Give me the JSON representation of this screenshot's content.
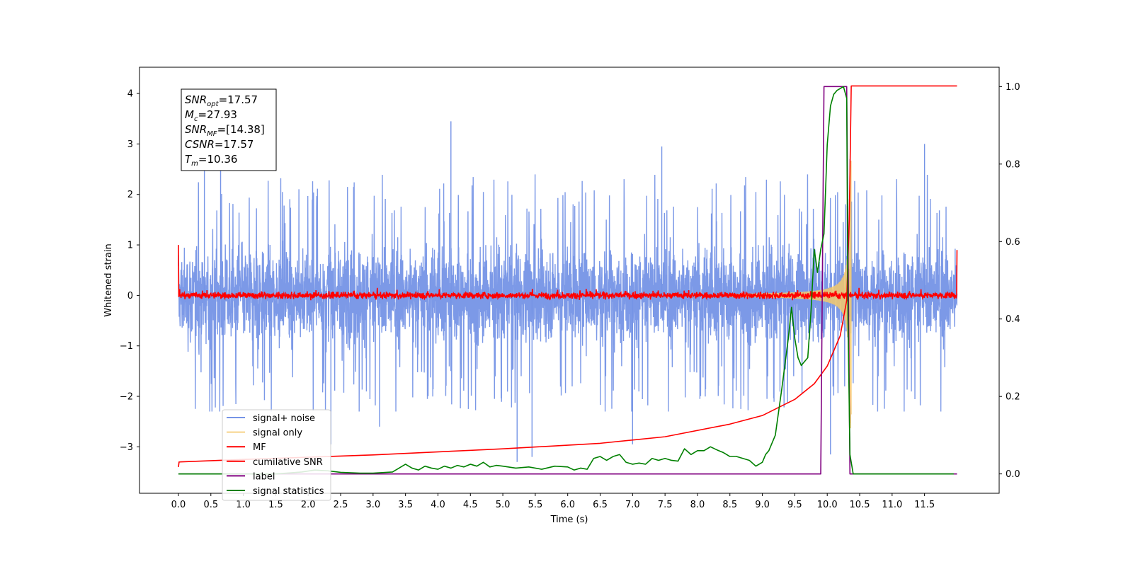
{
  "chart_data": {
    "type": "line",
    "title": "",
    "xlabel": "Time (s)",
    "ylabel": "Whitened strain",
    "xlim": [
      -0.6,
      12.65
    ],
    "ylim": [
      -3.92,
      4.52
    ],
    "y2lim": [
      -0.05,
      1.05
    ],
    "x_ticks": [
      "0.0",
      "0.5",
      "1.0",
      "1.5",
      "2.0",
      "2.5",
      "3.0",
      "3.5",
      "4.0",
      "4.5",
      "5.0",
      "5.5",
      "6.0",
      "6.5",
      "7.0",
      "7.5",
      "8.0",
      "8.5",
      "9.0",
      "9.5",
      "10.0",
      "10.5",
      "11.0",
      "11.5"
    ],
    "y_ticks": [
      "−3",
      "−2",
      "−1",
      "0",
      "1",
      "2",
      "3",
      "4"
    ],
    "y2_ticks": [
      "0.0",
      "0.2",
      "0.4",
      "0.6",
      "0.8",
      "1.0"
    ],
    "grid": false,
    "legend_position": "lower-left",
    "info_box": {
      "lines": [
        {
          "base": "SNR",
          "sub": "opt",
          "value": "=17.57"
        },
        {
          "base": "M",
          "sub": "c",
          "value": "=27.93"
        },
        {
          "base": "SNR",
          "sub": "MF",
          "value": "=[14.38]"
        },
        {
          "base": "CSNR",
          "sub": "",
          "value": "=17.57"
        },
        {
          "base": "T",
          "sub": "m",
          "value": "=10.36"
        }
      ]
    },
    "series": [
      {
        "name": "signal+ noise",
        "color": "#7594e6",
        "axis": "left",
        "x_range": [
          0,
          12
        ],
        "envelope": [
          -2.3,
          2.4
        ],
        "spikes": [
          [
            4.2,
            3.45
          ],
          [
            4.2,
            -1.5
          ],
          [
            0.4,
            2.6
          ],
          [
            0.65,
            2.6
          ],
          [
            10.35,
            2.7
          ],
          [
            11.5,
            3.0
          ],
          [
            7.45,
            2.95
          ],
          [
            5.22,
            -3.3
          ],
          [
            5.45,
            -3.2
          ],
          [
            3.1,
            -2.6
          ],
          [
            2.35,
            -2.95
          ],
          [
            7.0,
            -2.95
          ],
          [
            10.05,
            -3.15
          ]
        ]
      },
      {
        "name": "signal only",
        "color": "#f5c96b",
        "axis": "left",
        "x_range": [
          8.5,
          10.37
        ],
        "note": "chirp amplitude growing toward merger"
      },
      {
        "name": "MF",
        "color": "#ff0000",
        "axis": "left",
        "x_range": [
          0,
          12
        ],
        "baseline": 0.0,
        "edges": [
          [
            0.0,
            1.0
          ],
          [
            12.0,
            0.9
          ]
        ]
      },
      {
        "name": "cumilative SNR",
        "color": "#ff0000",
        "axis": "left",
        "x": [
          0.0,
          0.01,
          1.0,
          3.0,
          5.0,
          6.5,
          7.5,
          8.5,
          9.0,
          9.5,
          9.8,
          10.0,
          10.2,
          10.3,
          10.34,
          10.37,
          10.5,
          12.0
        ],
        "y": [
          -3.4,
          -3.3,
          -3.25,
          -3.16,
          -3.04,
          -2.93,
          -2.8,
          -2.55,
          -2.38,
          -2.06,
          -1.75,
          -1.4,
          -0.8,
          -0.1,
          1.5,
          4.15,
          4.15,
          4.15
        ]
      },
      {
        "name": "label",
        "color": "#800080",
        "axis": "right",
        "x": [
          0.0,
          9.9,
          9.95,
          10.3,
          10.35,
          12.0
        ],
        "y": [
          0.0,
          0.0,
          1.0,
          1.0,
          0.0,
          0.0
        ]
      },
      {
        "name": "signal statistics",
        "color": "#008000",
        "axis": "right",
        "x": [
          0.0,
          0.5,
          1.0,
          1.5,
          1.9,
          2.1,
          2.3,
          2.5,
          2.8,
          3.0,
          3.3,
          3.4,
          3.5,
          3.6,
          3.7,
          3.8,
          3.9,
          4.0,
          4.1,
          4.2,
          4.3,
          4.4,
          4.5,
          4.6,
          4.7,
          4.8,
          4.9,
          5.0,
          5.2,
          5.4,
          5.6,
          5.8,
          6.0,
          6.1,
          6.2,
          6.3,
          6.4,
          6.5,
          6.6,
          6.7,
          6.8,
          6.9,
          7.0,
          7.1,
          7.2,
          7.3,
          7.4,
          7.5,
          7.6,
          7.7,
          7.8,
          7.9,
          8.0,
          8.1,
          8.2,
          8.3,
          8.4,
          8.5,
          8.6,
          8.7,
          8.8,
          8.9,
          9.0,
          9.05,
          9.1,
          9.2,
          9.3,
          9.4,
          9.45,
          9.5,
          9.55,
          9.6,
          9.7,
          9.75,
          9.8,
          9.85,
          9.9,
          9.95,
          10.0,
          10.05,
          10.1,
          10.15,
          10.2,
          10.25,
          10.3,
          10.32,
          10.35,
          10.4,
          11.0,
          11.5,
          11.95
        ],
        "y": [
          0.0,
          0.0,
          0.0,
          0.0,
          0.005,
          0.01,
          0.008,
          0.004,
          0.002,
          0.002,
          0.005,
          0.015,
          0.025,
          0.015,
          0.01,
          0.02,
          0.015,
          0.012,
          0.02,
          0.015,
          0.022,
          0.018,
          0.025,
          0.02,
          0.03,
          0.018,
          0.022,
          0.02,
          0.015,
          0.018,
          0.012,
          0.02,
          0.018,
          0.01,
          0.015,
          0.012,
          0.04,
          0.045,
          0.035,
          0.045,
          0.05,
          0.03,
          0.025,
          0.028,
          0.025,
          0.04,
          0.035,
          0.04,
          0.035,
          0.033,
          0.065,
          0.05,
          0.06,
          0.06,
          0.07,
          0.062,
          0.055,
          0.045,
          0.045,
          0.04,
          0.035,
          0.02,
          0.03,
          0.05,
          0.06,
          0.1,
          0.22,
          0.35,
          0.43,
          0.35,
          0.3,
          0.28,
          0.3,
          0.42,
          0.58,
          0.52,
          0.58,
          0.62,
          0.85,
          0.95,
          0.98,
          0.99,
          0.995,
          1.0,
          0.97,
          0.4,
          0.05,
          0.0,
          0.0,
          0.0,
          0.0
        ]
      }
    ]
  }
}
